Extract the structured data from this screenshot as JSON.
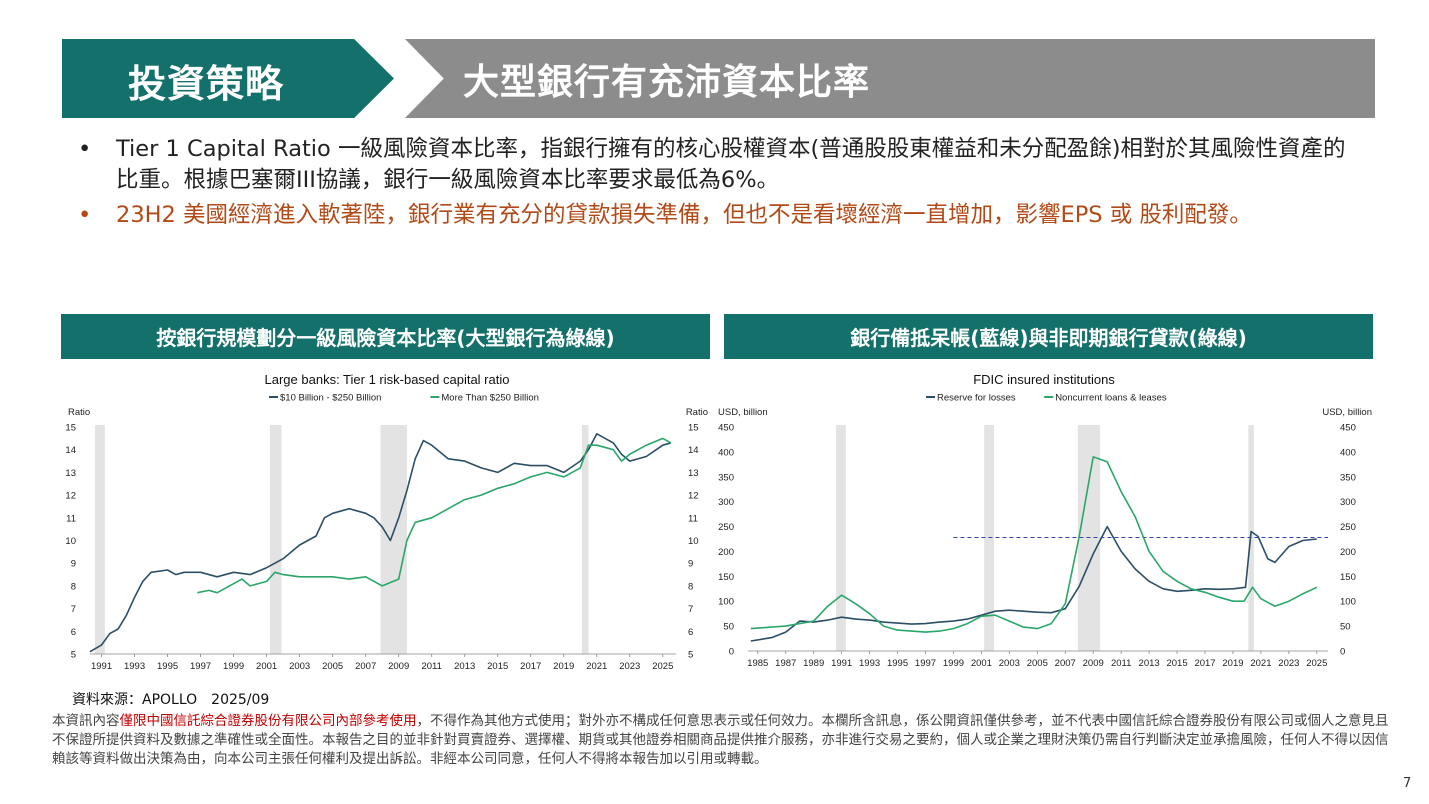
{
  "header": {
    "section_label": "投資策略",
    "title": "大型銀行有充沛資本比率"
  },
  "bullets": [
    {
      "marker": "•",
      "text": "Tier 1 Capital Ratio 一級風險資本比率，指銀行擁有的核心股權資本(普通股股東權益和未分配盈餘)相對於其風險性資產的比重。根據巴塞爾III協議，銀行一級風險資本比率要求最低為6%。"
    },
    {
      "marker": "•",
      "text": "23H2 美國經濟進入軟著陸，銀行業有充分的貸款損失準備，但也不是看壞經濟一直增加，影響EPS 或 股利配發。",
      "color": "#b24a17"
    }
  ],
  "panels": {
    "left_title": "按銀行規模劃分一級風險資本比率(大型銀行為綠線)",
    "right_title": "銀行備抵呆帳(藍線)與非即期銀行貸款(綠線)"
  },
  "chart_data": [
    {
      "type": "line",
      "title": "Large banks: Tier 1 risk-based capital ratio",
      "ylabel": "Ratio",
      "ylabel_right": "Ratio",
      "xlim": [
        1990.3,
        2025.8
      ],
      "ylim": [
        5,
        15
      ],
      "yticks": [
        5,
        6,
        7,
        8,
        9,
        10,
        11,
        12,
        13,
        14,
        15
      ],
      "xticks": [
        "1991",
        "1993",
        "1995",
        "1997",
        "1999",
        "2001",
        "2003",
        "2005",
        "2007",
        "2009",
        "2011",
        "2013",
        "2015",
        "2017",
        "2019",
        "2021",
        "2023",
        "2025"
      ],
      "recessions": [
        [
          1990.6,
          1991.2
        ],
        [
          2001.2,
          2001.9
        ],
        [
          2007.9,
          2009.5
        ],
        [
          2020.1,
          2020.5
        ]
      ],
      "legend_position": "top",
      "series": [
        {
          "name": "$10 Billion - $250 Billion",
          "color": "#2c4f66",
          "points": [
            [
              1990.3,
              5.1
            ],
            [
              1991,
              5.4
            ],
            [
              1991.5,
              5.9
            ],
            [
              1992,
              6.1
            ],
            [
              1992.5,
              6.7
            ],
            [
              1993,
              7.5
            ],
            [
              1993.5,
              8.2
            ],
            [
              1994,
              8.6
            ],
            [
              1995,
              8.7
            ],
            [
              1995.5,
              8.5
            ],
            [
              1996,
              8.6
            ],
            [
              1997,
              8.6
            ],
            [
              1998,
              8.4
            ],
            [
              1999,
              8.6
            ],
            [
              2000,
              8.5
            ],
            [
              2001,
              8.8
            ],
            [
              2002,
              9.2
            ],
            [
              2003,
              9.8
            ],
            [
              2004,
              10.2
            ],
            [
              2004.5,
              11.0
            ],
            [
              2005,
              11.2
            ],
            [
              2006,
              11.4
            ],
            [
              2007,
              11.2
            ],
            [
              2007.5,
              11.0
            ],
            [
              2008,
              10.6
            ],
            [
              2008.5,
              10.0
            ],
            [
              2009,
              11.0
            ],
            [
              2009.5,
              12.2
            ],
            [
              2010,
              13.6
            ],
            [
              2010.5,
              14.4
            ],
            [
              2011,
              14.2
            ],
            [
              2012,
              13.6
            ],
            [
              2013,
              13.5
            ],
            [
              2014,
              13.2
            ],
            [
              2015,
              13.0
            ],
            [
              2016,
              13.4
            ],
            [
              2017,
              13.3
            ],
            [
              2018,
              13.3
            ],
            [
              2019,
              13.0
            ],
            [
              2020,
              13.5
            ],
            [
              2020.5,
              14.0
            ],
            [
              2021,
              14.7
            ],
            [
              2022,
              14.3
            ],
            [
              2022.5,
              13.8
            ],
            [
              2023,
              13.5
            ],
            [
              2024,
              13.7
            ],
            [
              2025,
              14.2
            ],
            [
              2025.5,
              14.3
            ]
          ]
        },
        {
          "name": "More Than $250 Billion",
          "color": "#2aa66a",
          "points": [
            [
              1996.8,
              7.7
            ],
            [
              1997.5,
              7.8
            ],
            [
              1998,
              7.7
            ],
            [
              1998.5,
              7.9
            ],
            [
              1999.5,
              8.3
            ],
            [
              2000,
              8.0
            ],
            [
              2001,
              8.2
            ],
            [
              2001.5,
              8.6
            ],
            [
              2002,
              8.5
            ],
            [
              2003,
              8.4
            ],
            [
              2004,
              8.4
            ],
            [
              2005,
              8.4
            ],
            [
              2006,
              8.3
            ],
            [
              2007,
              8.4
            ],
            [
              2008,
              8.0
            ],
            [
              2009,
              8.3
            ],
            [
              2009.5,
              10.0
            ],
            [
              2010,
              10.8
            ],
            [
              2011,
              11.0
            ],
            [
              2012,
              11.4
            ],
            [
              2013,
              11.8
            ],
            [
              2014,
              12.0
            ],
            [
              2015,
              12.3
            ],
            [
              2016,
              12.5
            ],
            [
              2017,
              12.8
            ],
            [
              2018,
              13.0
            ],
            [
              2019,
              12.8
            ],
            [
              2020,
              13.2
            ],
            [
              2020.5,
              14.2
            ],
            [
              2021,
              14.2
            ],
            [
              2022,
              14.0
            ],
            [
              2022.5,
              13.5
            ],
            [
              2023,
              13.8
            ],
            [
              2024,
              14.2
            ],
            [
              2025,
              14.5
            ],
            [
              2025.5,
              14.3
            ]
          ]
        }
      ]
    },
    {
      "type": "line",
      "title": "FDIC insured institutions",
      "ylabel": "USD, billion",
      "ylabel_right": "USD, billion",
      "xlim": [
        1984.3,
        2025.8
      ],
      "ylim": [
        0,
        450
      ],
      "yticks": [
        0,
        50,
        100,
        150,
        200,
        250,
        300,
        350,
        400,
        450
      ],
      "xticks": [
        "1985",
        "1987",
        "1989",
        "1991",
        "1993",
        "1995",
        "1997",
        "1999",
        "2001",
        "2003",
        "2005",
        "2007",
        "2009",
        "2011",
        "2013",
        "2015",
        "2017",
        "2019",
        "2021",
        "2023",
        "2025"
      ],
      "recessions": [
        [
          1990.6,
          1991.3
        ],
        [
          2001.2,
          2001.9
        ],
        [
          2007.9,
          2009.5
        ],
        [
          2020.1,
          2020.5
        ]
      ],
      "reference_line": {
        "y": 228,
        "x_start": 1999.0,
        "x_end": 2025.8,
        "color": "#3344aa",
        "style": "dashed"
      },
      "legend_position": "top",
      "series": [
        {
          "name": "Reserve for losses",
          "color": "#2c4f66",
          "points": [
            [
              1984.5,
              20
            ],
            [
              1986,
              27
            ],
            [
              1987,
              38
            ],
            [
              1988,
              60
            ],
            [
              1989,
              58
            ],
            [
              1990,
              62
            ],
            [
              1991,
              68
            ],
            [
              1992,
              64
            ],
            [
              1993,
              62
            ],
            [
              1994,
              58
            ],
            [
              1995,
              56
            ],
            [
              1996,
              54
            ],
            [
              1997,
              55
            ],
            [
              1998,
              58
            ],
            [
              1999,
              60
            ],
            [
              2000,
              64
            ],
            [
              2001,
              72
            ],
            [
              2002,
              80
            ],
            [
              2003,
              82
            ],
            [
              2004,
              80
            ],
            [
              2005,
              78
            ],
            [
              2006,
              77
            ],
            [
              2007,
              85
            ],
            [
              2008,
              130
            ],
            [
              2009,
              195
            ],
            [
              2010,
              250
            ],
            [
              2011,
              200
            ],
            [
              2012,
              165
            ],
            [
              2013,
              140
            ],
            [
              2014,
              125
            ],
            [
              2015,
              120
            ],
            [
              2016,
              122
            ],
            [
              2017,
              125
            ],
            [
              2018,
              124
            ],
            [
              2019,
              125
            ],
            [
              2019.9,
              128
            ],
            [
              2020.3,
              240
            ],
            [
              2020.8,
              230
            ],
            [
              2021.5,
              185
            ],
            [
              2022,
              178
            ],
            [
              2023,
              210
            ],
            [
              2024,
              222
            ],
            [
              2025,
              225
            ]
          ]
        },
        {
          "name": "Noncurrent loans & leases",
          "color": "#2aa66a",
          "points": [
            [
              1984.5,
              45
            ],
            [
              1986,
              48
            ],
            [
              1987,
              50
            ],
            [
              1988,
              55
            ],
            [
              1989,
              60
            ],
            [
              1990,
              90
            ],
            [
              1991,
              112
            ],
            [
              1992,
              95
            ],
            [
              1993,
              75
            ],
            [
              1994,
              50
            ],
            [
              1995,
              42
            ],
            [
              1996,
              40
            ],
            [
              1997,
              38
            ],
            [
              1998,
              40
            ],
            [
              1999,
              45
            ],
            [
              2000,
              55
            ],
            [
              2001,
              70
            ],
            [
              2002,
              72
            ],
            [
              2003,
              60
            ],
            [
              2004,
              48
            ],
            [
              2005,
              45
            ],
            [
              2006,
              55
            ],
            [
              2007,
              95
            ],
            [
              2008,
              230
            ],
            [
              2009,
              390
            ],
            [
              2010,
              380
            ],
            [
              2011,
              320
            ],
            [
              2012,
              270
            ],
            [
              2013,
              200
            ],
            [
              2014,
              160
            ],
            [
              2015,
              140
            ],
            [
              2016,
              125
            ],
            [
              2017,
              118
            ],
            [
              2018,
              108
            ],
            [
              2019,
              100
            ],
            [
              2019.8,
              100
            ],
            [
              2020.4,
              128
            ],
            [
              2021,
              105
            ],
            [
              2022,
              90
            ],
            [
              2023,
              100
            ],
            [
              2024,
              115
            ],
            [
              2025,
              128
            ]
          ]
        }
      ]
    }
  ],
  "source": "資料來源：APOLLO　2025/09",
  "disclaimer": {
    "prefix": "本資訊內容",
    "highlight": "僅限中國信託綜合證券股份有限公司內部參考使用",
    "suffix": "，不得作為其他方式使用；對外亦不構成任何意思表示或任何效力。本欄所含訊息，係公開資訊僅供參考，並不代表中國信託綜合證券股份有限公司或個人之意見且不保證所提供資料及數據之準確性或全面性。本報告之目的並非針對買賣證券、選擇權、期貨或其他證券相關商品提供推介服務，亦非進行交易之要約，個人或企業之理財決策仍需自行判斷決定並承擔風險，任何人不得以因信賴該等資料做出決策為由，向本公司主張任何權利及提出訴訟。非經本公司同意，任何人不得將本報告加以引用或轉載。"
  },
  "page_number": "7",
  "colors": {
    "banner_green": "#14706a",
    "banner_gray": "#8c8c8c",
    "accent_orange": "#b24a17",
    "disclaimer_red": "#c00000"
  }
}
